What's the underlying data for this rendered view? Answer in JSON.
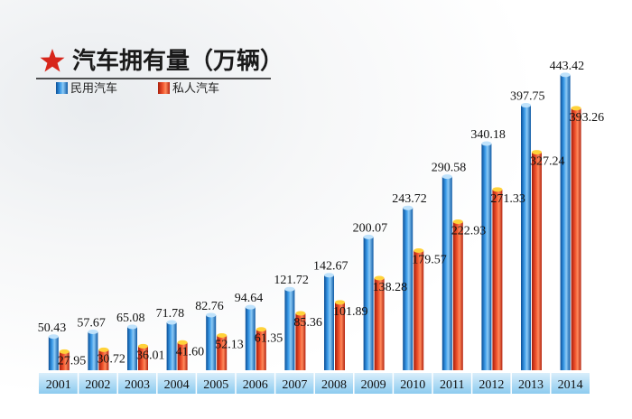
{
  "chart_data": {
    "type": "bar",
    "title": "汽车拥有量（万辆）",
    "categories": [
      "2001",
      "2002",
      "2003",
      "2004",
      "2005",
      "2006",
      "2007",
      "2008",
      "2009",
      "2010",
      "2011",
      "2012",
      "2013",
      "2014"
    ],
    "series": [
      {
        "name": "民用汽车",
        "color": "#1e78c8",
        "values": [
          50.43,
          57.67,
          65.08,
          71.78,
          82.76,
          94.64,
          121.72,
          142.67,
          200.07,
          243.72,
          290.58,
          340.18,
          397.75,
          443.42
        ],
        "labels": [
          "50.43",
          "57.67",
          "65.08",
          "71.78",
          "82.76",
          "94.64",
          "121.72",
          "142.67",
          "200.07",
          "243.72",
          "290.58",
          "340.18",
          "397.75",
          "443.42"
        ]
      },
      {
        "name": "私人汽车",
        "color": "#e03a1e",
        "values": [
          27.95,
          30.72,
          36.01,
          41.6,
          52.13,
          61.35,
          85.36,
          101.89,
          138.28,
          179.57,
          222.93,
          271.33,
          327.24,
          393.26
        ],
        "labels": [
          "27.95",
          "30.72",
          "36.01",
          "41.60",
          "52.13",
          "61.35",
          "85.36",
          "101.89",
          "138.28",
          "179.57",
          "222.93",
          "271.33",
          "327.24",
          "393.26"
        ]
      }
    ],
    "ylim": [
      0,
      450
    ],
    "legend": "top-left"
  }
}
